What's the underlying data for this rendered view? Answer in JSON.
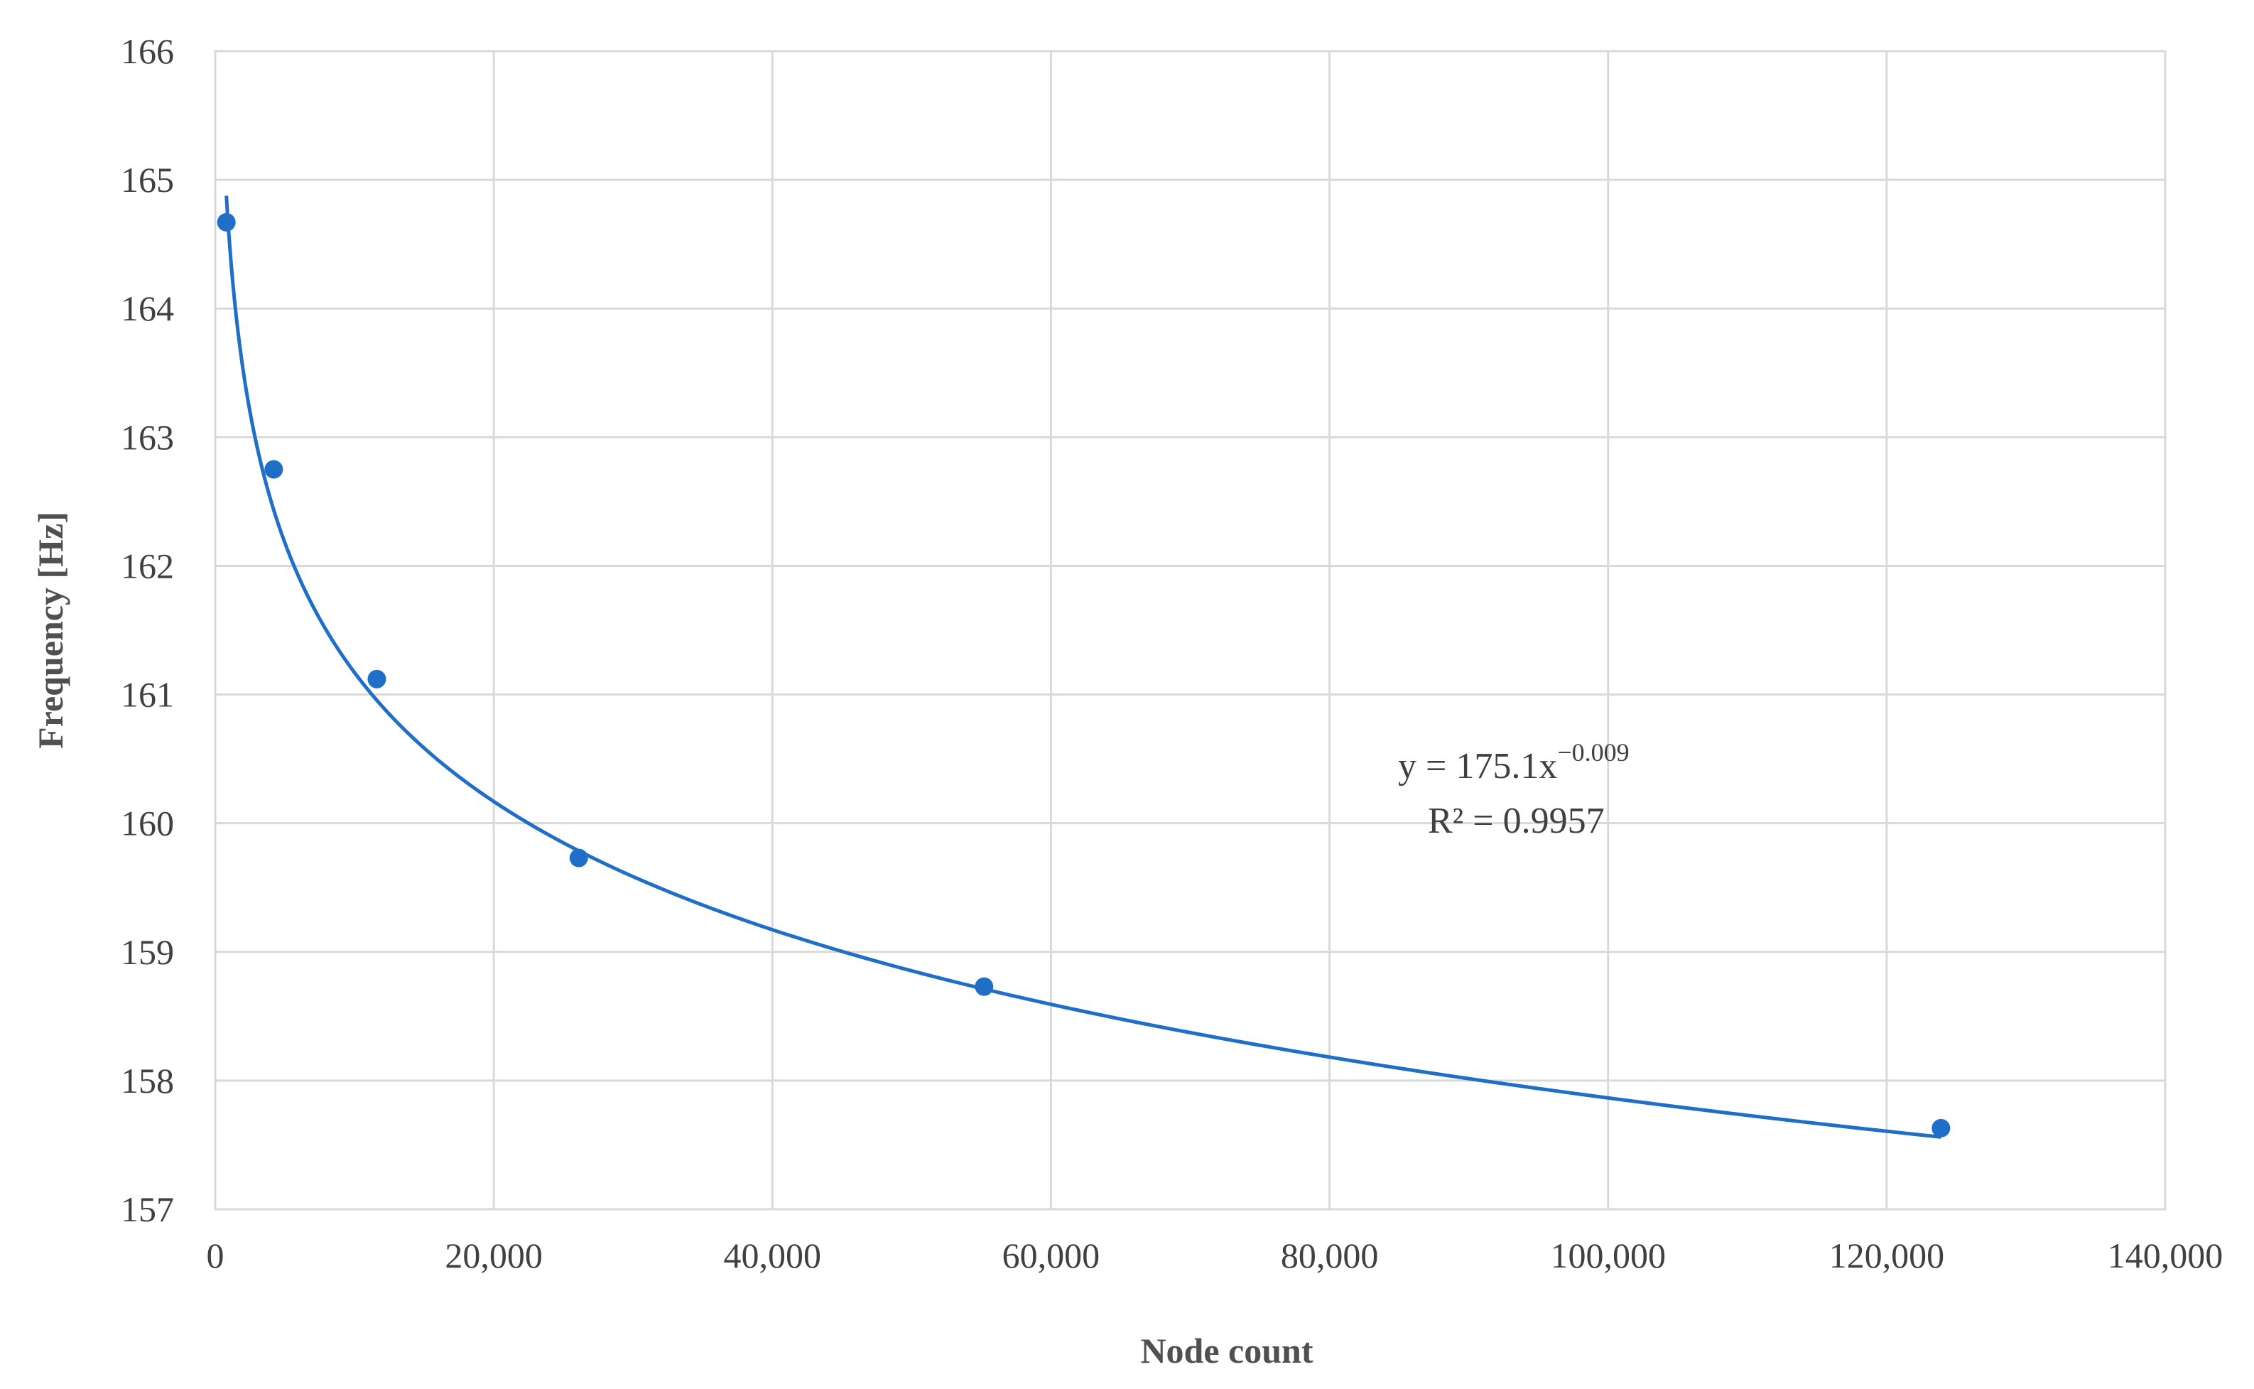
{
  "chart_data": {
    "type": "scatter",
    "xlabel": "Node count",
    "ylabel": "Frequency [Hz]",
    "xlim": [
      0,
      140000
    ],
    "ylim": [
      157,
      166
    ],
    "x_ticks": [
      "0",
      "20,000",
      "40,000",
      "60,000",
      "80,000",
      "100,000",
      "120,000",
      "140,000"
    ],
    "x_tick_values": [
      0,
      20000,
      40000,
      60000,
      80000,
      100000,
      120000,
      140000
    ],
    "y_ticks": [
      "157",
      "158",
      "159",
      "160",
      "161",
      "162",
      "163",
      "164",
      "165",
      "166"
    ],
    "y_tick_values": [
      157,
      158,
      159,
      160,
      161,
      162,
      163,
      164,
      165,
      166
    ],
    "grid": true,
    "legend": "none",
    "color": "#1f6fc8",
    "points": [
      {
        "x": 800,
        "y": 164.67
      },
      {
        "x": 4200,
        "y": 162.75
      },
      {
        "x": 11600,
        "y": 161.12
      },
      {
        "x": 26100,
        "y": 159.73
      },
      {
        "x": 55200,
        "y": 158.73
      },
      {
        "x": 123900,
        "y": 157.63
      }
    ],
    "trendline": {
      "type": "power",
      "a": 175.1,
      "b": -0.009,
      "x_range": [
        800,
        123900
      ],
      "equation_prefix": "y = 175.1x",
      "equation_exponent": "−0.009",
      "r2_label": "R² = 0.9957"
    }
  }
}
